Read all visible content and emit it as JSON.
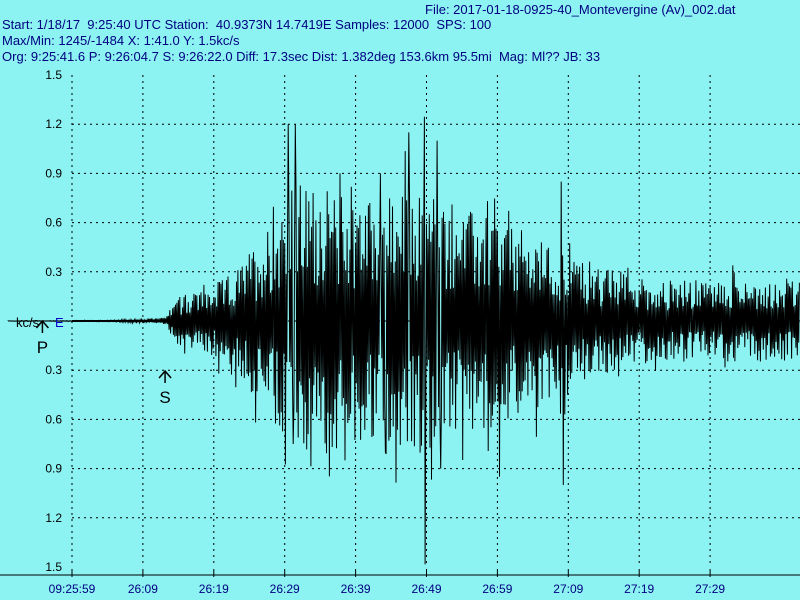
{
  "header": {
    "file_line": "File: 2017-01-18-0925-40_Montevergine (Av)_002.dat",
    "info_line_1": "Start: 1/18/17  9:25:40 UTC Station:  40.9373N 14.7419E Samples: 12000  SPS: 100",
    "info_line_2": "Max/Min: 1245/-1484 X: 1:41.0 Y: 1.5kc/s",
    "info_line_3": "Org: 9:25:41.6 P: 9:26:04.7 S: 9:26:22.0 Diff: 17.3sec Dist: 1.382deg 153.6km 95.5mi  Mag: Ml?? JB: 33"
  },
  "colors": {
    "background": "#8df2f2",
    "header_text": "#000080",
    "trace": "#000000",
    "grid": "#000000",
    "channel_label": "#0000cc"
  },
  "chart_data": {
    "type": "line",
    "unit_label": "kc/s",
    "channel": "E",
    "y_tick_labels": [
      "1.5",
      "1.2",
      "0.9",
      "0.6",
      "0.3",
      "",
      "0.3",
      "0.6",
      "0.9",
      "1.2",
      "1.5"
    ],
    "ylim": [
      -1.5,
      1.5
    ],
    "x_tick_labels": [
      "09:25:59",
      "26:09",
      "26:19",
      "26:29",
      "26:39",
      "26:49",
      "26:59",
      "27:09",
      "27:19",
      "27:29"
    ],
    "x_start_seconds": 0,
    "x_end_seconds": 101,
    "x_tick_seconds": [
      19,
      29,
      39,
      49,
      59,
      69,
      79,
      89,
      99,
      109
    ],
    "grid": true,
    "markers": [
      {
        "label": "P",
        "time_seconds": 24.7
      },
      {
        "label": "S",
        "time_seconds": 42.0
      }
    ],
    "envelope": [
      {
        "t": 0,
        "a": 0.0
      },
      {
        "t": 19,
        "a": 0.003
      },
      {
        "t": 24.7,
        "a": 0.005
      },
      {
        "t": 32,
        "a": 0.02
      },
      {
        "t": 34,
        "a": 0.15
      },
      {
        "t": 38,
        "a": 0.2
      },
      {
        "t": 42,
        "a": 0.3
      },
      {
        "t": 46,
        "a": 0.55
      },
      {
        "t": 50,
        "a": 0.85
      },
      {
        "t": 56,
        "a": 0.8
      },
      {
        "t": 62,
        "a": 0.75
      },
      {
        "t": 68,
        "a": 0.8
      },
      {
        "t": 72,
        "a": 0.7
      },
      {
        "t": 78,
        "a": 0.65
      },
      {
        "t": 85,
        "a": 0.5
      },
      {
        "t": 92,
        "a": 0.35
      },
      {
        "t": 101,
        "a": 0.25
      }
    ],
    "peaks": [
      {
        "t": 49.5,
        "v": 1.2
      },
      {
        "t": 50.5,
        "v": 1.2
      },
      {
        "t": 50.2,
        "v": -0.75
      },
      {
        "t": 56.8,
        "v": 0.9
      },
      {
        "t": 57.5,
        "v": -0.85
      },
      {
        "t": 62.5,
        "v": 0.9
      },
      {
        "t": 63.2,
        "v": -0.8
      },
      {
        "t": 66.5,
        "v": 1.15
      },
      {
        "t": 68.7,
        "v": 1.245
      },
      {
        "t": 68.8,
        "v": -1.484
      },
      {
        "t": 70.5,
        "v": 1.1
      },
      {
        "t": 71.0,
        "v": -0.9
      },
      {
        "t": 79.3,
        "v": -0.95
      },
      {
        "t": 88.3,
        "v": -1.0
      },
      {
        "t": 88.0,
        "v": 0.85
      }
    ]
  }
}
